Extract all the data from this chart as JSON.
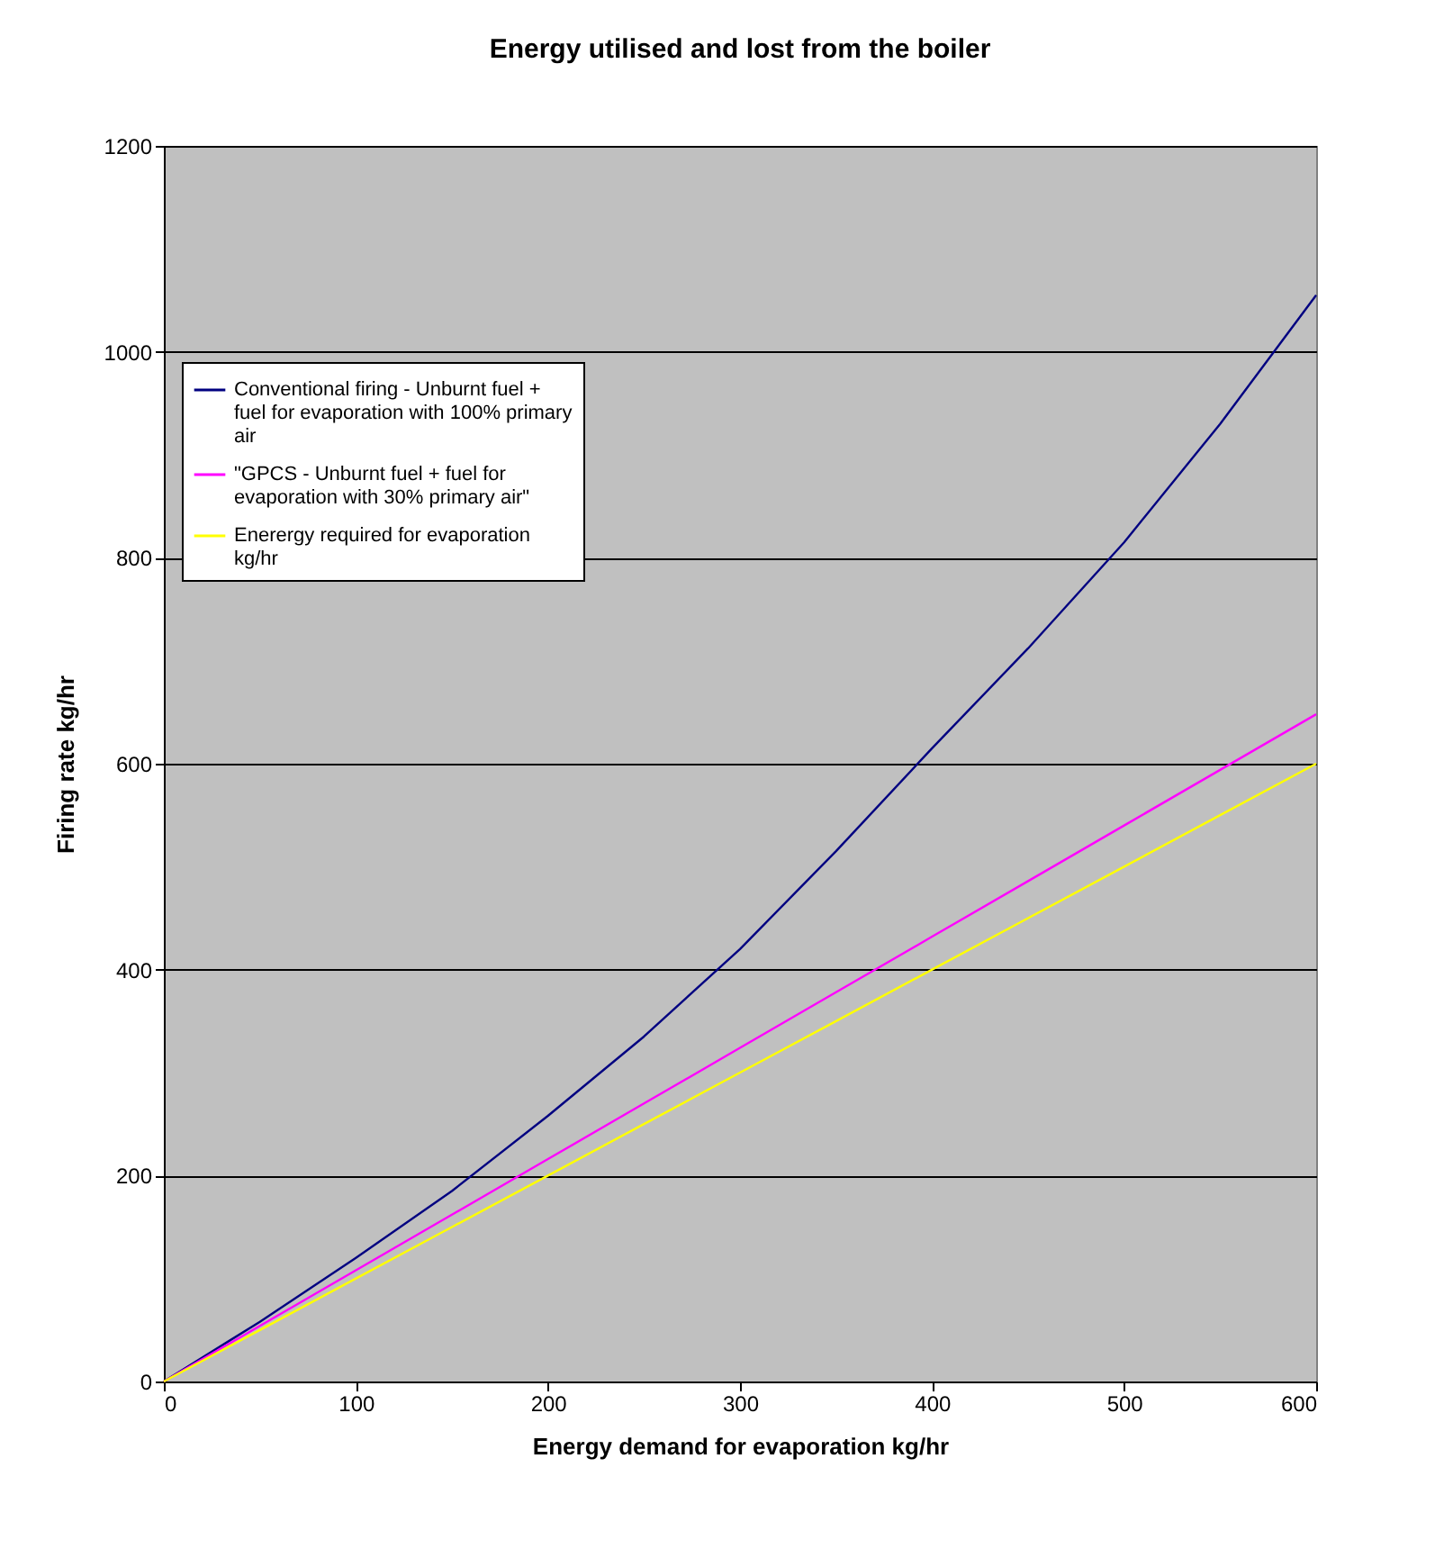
{
  "chart_data": {
    "type": "line",
    "title": "Energy utilised and lost from the boiler",
    "xlabel": "Energy demand for evaporation kg/hr",
    "ylabel": "Firing rate kg/hr",
    "x": [
      0,
      50,
      100,
      150,
      200,
      250,
      300,
      350,
      400,
      450,
      500,
      550,
      600
    ],
    "series": [
      {
        "name": "Conventional firing - Unburnt fuel + fuel for evaporation with 100% primary air",
        "color": "#000080",
        "values": [
          0,
          58,
          120,
          185,
          258,
          335,
          420,
          515,
          615,
          712,
          815,
          930,
          1055
        ]
      },
      {
        "name": "\"GPCS - Unburnt fuel + fuel for evaporation with 30% primary air\"",
        "color": "#ff00ff",
        "values": [
          0,
          54,
          108,
          162,
          216,
          270,
          324,
          378,
          432,
          486,
          540,
          594,
          648
        ]
      },
      {
        "name": "Enerergy required for evaporation kg/hr",
        "color": "#ffff00",
        "values": [
          0,
          50,
          100,
          150,
          200,
          250,
          300,
          350,
          400,
          450,
          500,
          550,
          600
        ]
      }
    ],
    "xlim": [
      0,
      600
    ],
    "xticks": [
      0,
      100,
      200,
      300,
      400,
      500,
      600
    ],
    "ylim": [
      0,
      1200
    ],
    "yticks": [
      0,
      200,
      400,
      600,
      800,
      1000,
      1200
    ],
    "grid": "y",
    "legend": "top left",
    "marker": "none",
    "line_style": "solid"
  }
}
